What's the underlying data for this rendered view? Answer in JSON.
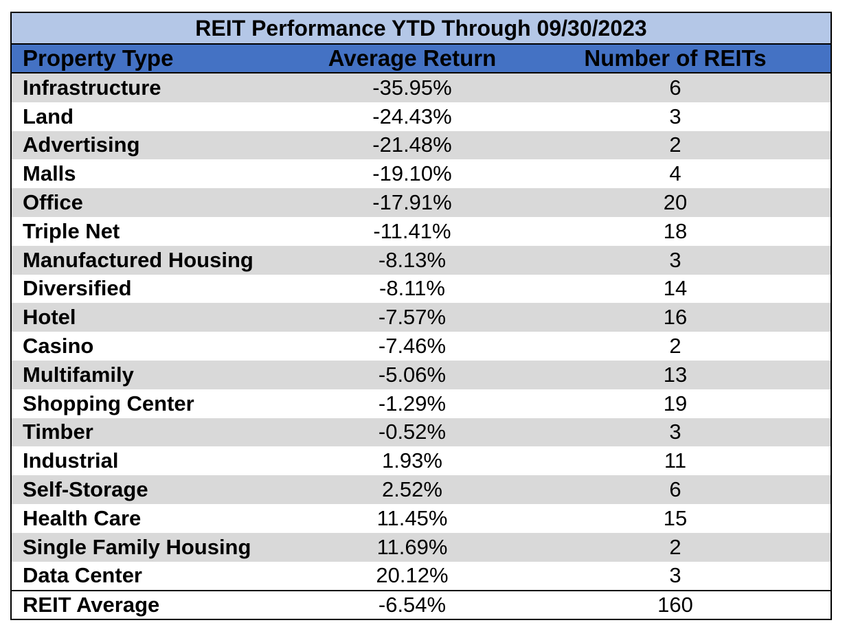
{
  "table": {
    "title": "REIT Performance YTD Through 09/30/2023",
    "headers": [
      "Property Type",
      "Average Return",
      "Number of REITs"
    ],
    "rows": [
      {
        "type": "Infrastructure",
        "return": "-35.95%",
        "count": "6"
      },
      {
        "type": "Land",
        "return": "-24.43%",
        "count": "3"
      },
      {
        "type": "Advertising",
        "return": "-21.48%",
        "count": "2"
      },
      {
        "type": "Malls",
        "return": "-19.10%",
        "count": "4"
      },
      {
        "type": "Office",
        "return": "-17.91%",
        "count": "20"
      },
      {
        "type": "Triple Net",
        "return": "-11.41%",
        "count": "18"
      },
      {
        "type": "Manufactured Housing",
        "return": "-8.13%",
        "count": "3"
      },
      {
        "type": "Diversified",
        "return": "-8.11%",
        "count": "14"
      },
      {
        "type": "Hotel",
        "return": "-7.57%",
        "count": "16"
      },
      {
        "type": "Casino",
        "return": "-7.46%",
        "count": "2"
      },
      {
        "type": "Multifamily",
        "return": "-5.06%",
        "count": "13"
      },
      {
        "type": "Shopping Center",
        "return": "-1.29%",
        "count": "19"
      },
      {
        "type": "Timber",
        "return": "-0.52%",
        "count": "3"
      },
      {
        "type": "Industrial",
        "return": "1.93%",
        "count": "11"
      },
      {
        "type": "Self-Storage",
        "return": "2.52%",
        "count": "6"
      },
      {
        "type": "Health Care",
        "return": "11.45%",
        "count": "15"
      },
      {
        "type": "Single Family Housing",
        "return": "11.69%",
        "count": "2"
      },
      {
        "type": "Data Center",
        "return": "20.12%",
        "count": "3"
      }
    ],
    "total": {
      "type": "REIT Average",
      "return": "-6.54%",
      "count": "160"
    }
  },
  "colors": {
    "title_bg": "#b4c7e7",
    "header_bg": "#4472c4",
    "shaded_row_bg": "#d9d9d9",
    "plain_row_bg": "#ffffff"
  }
}
